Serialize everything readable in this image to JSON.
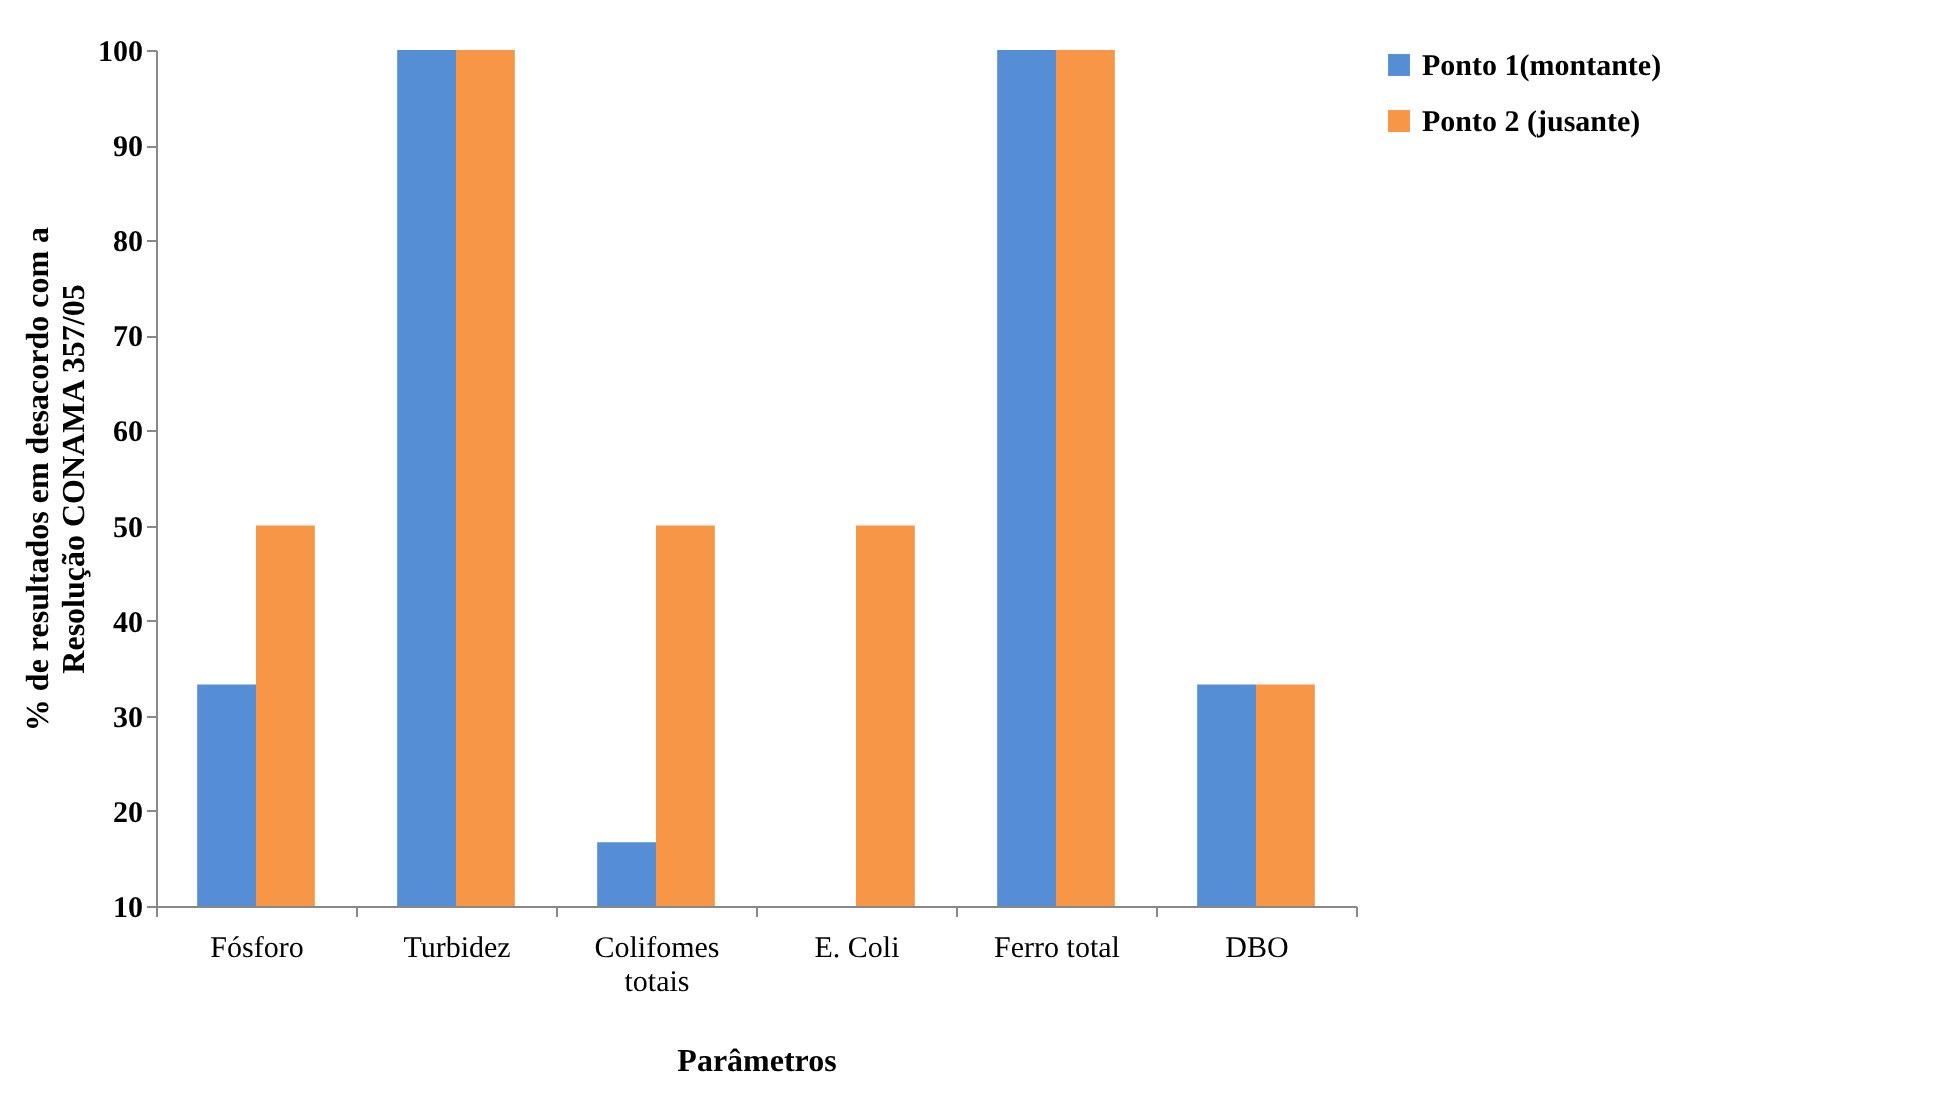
{
  "chart_data": {
    "type": "bar",
    "xlabel": "Parâmetros",
    "ylabel": "% de resultados em desacordo com a Resolução CONAMA 357/05",
    "categories": [
      "Fósforo",
      "Turbidez",
      "Colifomes totais",
      "E. Coli",
      "Ferro total",
      "DBO"
    ],
    "series": [
      {
        "name": "Ponto 1(montante)",
        "color": "#558ed5",
        "values": [
          33.3,
          100,
          16.7,
          null,
          100,
          33.3
        ]
      },
      {
        "name": "Ponto 2 (jusante)",
        "color": "#f79646",
        "values": [
          50,
          100,
          50,
          50,
          100,
          33.3
        ]
      }
    ],
    "ylim": [
      10,
      100
    ],
    "yticks": [
      10,
      20,
      30,
      40,
      50,
      60,
      70,
      80,
      90,
      100
    ],
    "grid": false,
    "legend": "right"
  }
}
